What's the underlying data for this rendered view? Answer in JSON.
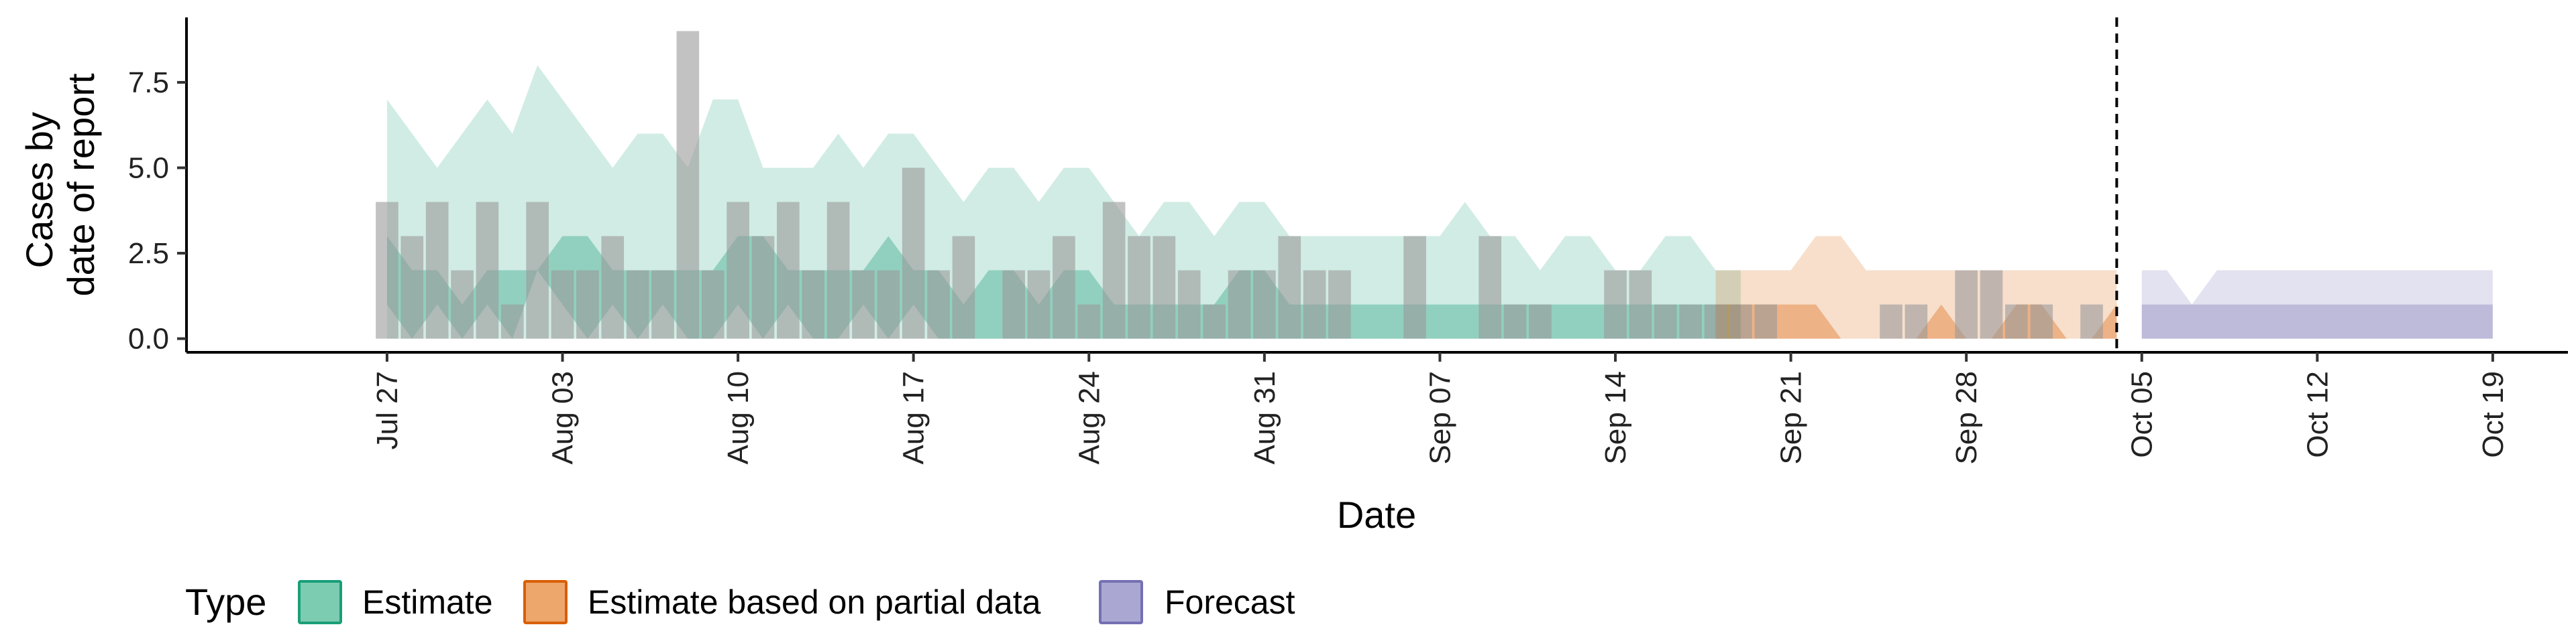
{
  "chart_data": {
    "type": "area",
    "title": "",
    "xlabel": "Date",
    "ylabel": [
      "Cases by",
      "date of report"
    ],
    "x_ticks": [
      "Jul 27",
      "Aug 03",
      "Aug 10",
      "Aug 17",
      "Aug 24",
      "Aug 31",
      "Sep 07",
      "Sep 14",
      "Sep 21",
      "Sep 28",
      "Oct 05",
      "Oct 12",
      "Oct 19"
    ],
    "x_tick_dates": [
      "2020-07-27",
      "2020-08-03",
      "2020-08-10",
      "2020-08-17",
      "2020-08-24",
      "2020-08-31",
      "2020-09-07",
      "2020-09-14",
      "2020-09-21",
      "2020-09-28",
      "2020-10-05",
      "2020-10-12",
      "2020-10-19"
    ],
    "x_range": [
      "2020-07-19",
      "2020-10-22"
    ],
    "y_ticks": [
      "0.0",
      "2.5",
      "5.0",
      "7.5"
    ],
    "y_tick_values": [
      0,
      2.5,
      5,
      7.5
    ],
    "ylim": [
      -0.4,
      9.4
    ],
    "forecast_line_date": "2020-10-04",
    "grid": false,
    "legend": {
      "title": "Type",
      "position": "bottom",
      "entries": [
        {
          "label": "Estimate",
          "fill": "#7cccb1",
          "stroke": "#1b9e77"
        },
        {
          "label": "Estimate based on partial data",
          "fill": "#eda66c",
          "stroke": "#d95f02"
        },
        {
          "label": "Forecast",
          "fill": "#aaa8d2",
          "stroke": "#7570b3"
        }
      ]
    },
    "colors": {
      "estimate": "#1b9e77",
      "partial": "#d95f02",
      "forecast": "#7570b3",
      "bars": "#999999"
    },
    "observed_cases": {
      "dates": [
        "2020-07-27",
        "2020-07-28",
        "2020-07-29",
        "2020-07-30",
        "2020-07-31",
        "2020-08-01",
        "2020-08-02",
        "2020-08-03",
        "2020-08-04",
        "2020-08-05",
        "2020-08-06",
        "2020-08-07",
        "2020-08-08",
        "2020-08-09",
        "2020-08-10",
        "2020-08-11",
        "2020-08-12",
        "2020-08-13",
        "2020-08-14",
        "2020-08-15",
        "2020-08-16",
        "2020-08-17",
        "2020-08-18",
        "2020-08-19",
        "2020-08-20",
        "2020-08-21",
        "2020-08-22",
        "2020-08-23",
        "2020-08-24",
        "2020-08-25",
        "2020-08-26",
        "2020-08-27",
        "2020-08-28",
        "2020-08-29",
        "2020-08-30",
        "2020-08-31",
        "2020-09-01",
        "2020-09-02",
        "2020-09-03",
        "2020-09-04",
        "2020-09-05",
        "2020-09-06",
        "2020-09-07",
        "2020-09-08",
        "2020-09-09",
        "2020-09-10",
        "2020-09-11",
        "2020-09-12",
        "2020-09-13",
        "2020-09-14",
        "2020-09-15",
        "2020-09-16",
        "2020-09-17",
        "2020-09-18",
        "2020-09-19",
        "2020-09-20",
        "2020-09-21",
        "2020-09-22",
        "2020-09-23",
        "2020-09-24",
        "2020-09-25",
        "2020-09-26",
        "2020-09-27",
        "2020-09-28",
        "2020-09-29",
        "2020-09-30",
        "2020-10-01",
        "2020-10-02",
        "2020-10-03"
      ],
      "values": [
        4,
        3,
        4,
        2,
        4,
        1,
        4,
        2,
        2,
        3,
        2,
        2,
        9,
        2,
        4,
        3,
        4,
        2,
        4,
        2,
        2,
        5,
        2,
        3,
        0,
        2,
        2,
        3,
        1,
        4,
        3,
        3,
        2,
        1,
        2,
        2,
        3,
        2,
        2,
        0,
        0,
        3,
        0,
        0,
        3,
        1,
        1,
        0,
        0,
        2,
        2,
        1,
        1,
        1,
        1,
        1,
        0,
        0,
        0,
        0,
        1,
        1,
        0,
        2,
        2,
        1,
        1,
        0,
        1
      ]
    },
    "series": [
      {
        "name": "Estimate",
        "start": "2020-07-27",
        "outer_low": [
          0,
          0,
          0,
          0,
          0,
          0,
          0,
          0,
          0,
          0,
          0,
          0,
          0,
          0,
          0,
          0,
          0,
          0,
          0,
          0,
          0,
          0,
          0,
          0,
          0,
          0,
          0,
          0,
          0,
          0,
          0,
          0,
          0,
          0,
          0,
          0,
          0,
          0,
          0,
          0,
          0,
          0,
          0,
          0,
          0,
          0,
          0,
          0,
          0,
          0,
          0,
          0,
          0,
          0,
          0
        ],
        "outer_high": [
          7,
          6,
          5,
          6,
          7,
          6,
          8,
          7,
          6,
          5,
          6,
          6,
          5,
          7,
          7,
          5,
          5,
          5,
          6,
          5,
          6,
          6,
          5,
          4,
          5,
          5,
          4,
          5,
          5,
          4,
          3,
          4,
          4,
          3,
          4,
          4,
          3,
          3,
          3,
          3,
          3,
          3,
          3,
          4,
          3,
          3,
          2,
          3,
          3,
          2,
          2,
          3,
          3,
          2,
          2
        ],
        "inner_low": [
          1,
          0,
          1,
          0,
          1,
          0,
          2,
          1,
          0,
          1,
          0,
          1,
          0,
          0,
          1,
          0,
          1,
          0,
          0,
          1,
          0,
          1,
          0,
          0,
          0,
          0,
          0,
          0,
          0,
          0,
          0,
          0,
          0,
          0,
          0,
          0,
          0,
          0,
          0,
          0,
          0,
          0,
          0,
          0,
          0,
          0,
          0,
          0,
          0,
          0,
          0,
          0,
          0,
          0,
          0
        ],
        "inner_high": [
          3,
          2,
          2,
          1,
          2,
          2,
          2,
          3,
          3,
          2,
          2,
          2,
          2,
          2,
          3,
          3,
          2,
          2,
          2,
          2,
          3,
          2,
          2,
          1,
          2,
          2,
          1,
          2,
          2,
          1,
          1,
          1,
          1,
          1,
          2,
          2,
          1,
          1,
          1,
          1,
          1,
          1,
          1,
          1,
          1,
          1,
          1,
          1,
          1,
          1,
          1,
          1,
          1,
          1,
          1
        ]
      },
      {
        "name": "Estimate based on partial data",
        "start": "2020-09-18",
        "outer_low": [
          0,
          0,
          0,
          0,
          0,
          0,
          0,
          0,
          0,
          0,
          0,
          0,
          0,
          0,
          0,
          0,
          0
        ],
        "outer_high": [
          2,
          2,
          2,
          2,
          3,
          3,
          2,
          2,
          2,
          2,
          2,
          2,
          2,
          2,
          2,
          2,
          2
        ],
        "inner_low": [
          0,
          0,
          0,
          0,
          0,
          0,
          0,
          0,
          0,
          0,
          0,
          0,
          0,
          0,
          0,
          0,
          0
        ],
        "inner_high": [
          1,
          1,
          1,
          1,
          1,
          0,
          0,
          0,
          0,
          1,
          0,
          0,
          1,
          1,
          0,
          0,
          1
        ]
      },
      {
        "name": "Forecast",
        "start": "2020-10-05",
        "outer_low": [
          0,
          0,
          0,
          0,
          0,
          0,
          0,
          0,
          0,
          0,
          0,
          0,
          0,
          0,
          0
        ],
        "outer_high": [
          2,
          2,
          1,
          2,
          2,
          2,
          2,
          2,
          2,
          2,
          2,
          2,
          2,
          2,
          2
        ],
        "inner_low": [
          0,
          0,
          0,
          0,
          0,
          0,
          0,
          0,
          0,
          0,
          0,
          0,
          0,
          0,
          0
        ],
        "inner_high": [
          1,
          1,
          1,
          1,
          1,
          1,
          1,
          1,
          1,
          1,
          1,
          1,
          1,
          1,
          1
        ]
      }
    ]
  }
}
